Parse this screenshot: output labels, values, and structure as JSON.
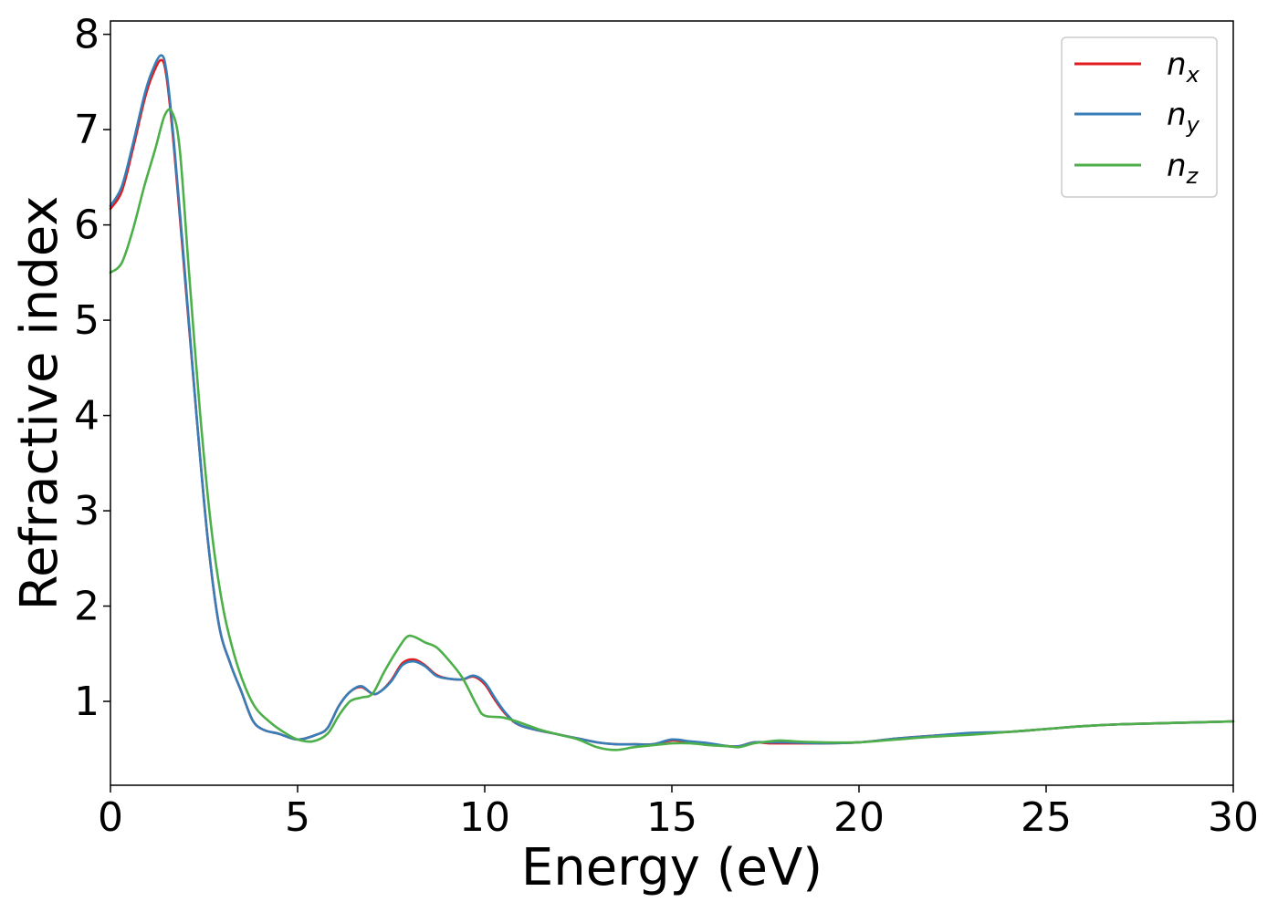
{
  "chart_data": {
    "type": "line",
    "title": "",
    "xlabel": "Energy (eV)",
    "ylabel": "Refractive index",
    "xlim": [
      0,
      30
    ],
    "ylim": [
      0.12,
      8.14
    ],
    "xticks": [
      0,
      5,
      10,
      15,
      20,
      25,
      30
    ],
    "xtick_labels": [
      "0",
      "5",
      "10",
      "15",
      "20",
      "25",
      "30"
    ],
    "yticks": [
      1,
      2,
      3,
      4,
      5,
      6,
      7,
      8
    ],
    "ytick_labels": [
      "1",
      "2",
      "3",
      "4",
      "5",
      "6",
      "7",
      "8"
    ],
    "grid": false,
    "legend_position": "top-right",
    "series": [
      {
        "name": "n_x",
        "label_main": "n",
        "label_sub": "x",
        "color": "#e41a1c",
        "x": [
          0,
          0.3,
          0.6,
          0.9,
          1.1,
          1.35,
          1.5,
          1.7,
          2.0,
          2.3,
          2.6,
          2.9,
          3.2,
          3.5,
          3.8,
          4.1,
          4.5,
          5.0,
          5.5,
          5.8,
          6.1,
          6.4,
          6.7,
          7.0,
          7.2,
          7.5,
          7.8,
          8.1,
          8.4,
          8.7,
          9.0,
          9.4,
          9.7,
          10.0,
          10.3,
          10.6,
          11.0,
          12.0,
          12.5,
          13.0,
          13.5,
          14.0,
          14.5,
          15.0,
          15.5,
          16.0,
          16.5,
          16.8,
          17.2,
          17.6,
          18.0,
          19.0,
          20.0,
          21.0,
          22.0,
          23.0,
          24.0,
          25.0,
          26.0,
          27.0,
          28.0,
          29.0,
          30.0
        ],
        "y": [
          6.17,
          6.35,
          6.8,
          7.3,
          7.55,
          7.73,
          7.55,
          6.8,
          5.4,
          4.0,
          2.7,
          1.8,
          1.4,
          1.1,
          0.8,
          0.7,
          0.66,
          0.6,
          0.65,
          0.72,
          0.95,
          1.1,
          1.15,
          1.08,
          1.1,
          1.22,
          1.4,
          1.44,
          1.38,
          1.28,
          1.24,
          1.23,
          1.26,
          1.18,
          1.0,
          0.85,
          0.74,
          0.65,
          0.61,
          0.57,
          0.55,
          0.55,
          0.55,
          0.59,
          0.57,
          0.55,
          0.53,
          0.53,
          0.57,
          0.56,
          0.56,
          0.56,
          0.57,
          0.61,
          0.64,
          0.66,
          0.68,
          0.71,
          0.74,
          0.76,
          0.77,
          0.78,
          0.79
        ]
      },
      {
        "name": "n_y",
        "label_main": "n",
        "label_sub": "y",
        "color": "#377eb8",
        "x": [
          0,
          0.3,
          0.6,
          0.9,
          1.1,
          1.35,
          1.5,
          1.7,
          2.0,
          2.3,
          2.6,
          2.9,
          3.2,
          3.5,
          3.8,
          4.1,
          4.5,
          5.0,
          5.5,
          5.8,
          6.1,
          6.4,
          6.7,
          7.0,
          7.2,
          7.5,
          7.8,
          8.1,
          8.4,
          8.7,
          9.0,
          9.4,
          9.7,
          10.0,
          10.3,
          10.6,
          11.0,
          12.0,
          12.5,
          13.0,
          13.5,
          14.0,
          14.5,
          15.0,
          15.5,
          16.0,
          16.5,
          16.8,
          17.2,
          17.6,
          18.0,
          19.0,
          20.0,
          21.0,
          22.0,
          23.0,
          24.0,
          25.0,
          26.0,
          27.0,
          28.0,
          29.0,
          30.0
        ],
        "y": [
          6.2,
          6.4,
          6.85,
          7.35,
          7.6,
          7.78,
          7.6,
          6.85,
          5.45,
          4.0,
          2.7,
          1.8,
          1.4,
          1.1,
          0.8,
          0.7,
          0.66,
          0.6,
          0.65,
          0.72,
          0.95,
          1.1,
          1.16,
          1.08,
          1.1,
          1.21,
          1.38,
          1.42,
          1.37,
          1.27,
          1.24,
          1.23,
          1.27,
          1.2,
          1.02,
          0.86,
          0.74,
          0.65,
          0.61,
          0.57,
          0.55,
          0.55,
          0.55,
          0.6,
          0.58,
          0.56,
          0.53,
          0.53,
          0.57,
          0.57,
          0.57,
          0.56,
          0.57,
          0.61,
          0.64,
          0.67,
          0.68,
          0.71,
          0.74,
          0.76,
          0.77,
          0.78,
          0.79
        ]
      },
      {
        "name": "n_z",
        "label_main": "n",
        "label_sub": "z",
        "color": "#4daf4a",
        "x": [
          0,
          0.3,
          0.6,
          0.9,
          1.2,
          1.45,
          1.65,
          1.85,
          2.1,
          2.4,
          2.7,
          3.0,
          3.3,
          3.6,
          3.9,
          4.3,
          4.7,
          5.0,
          5.4,
          5.8,
          6.1,
          6.4,
          6.7,
          7.0,
          7.3,
          7.6,
          7.9,
          8.1,
          8.4,
          8.7,
          9.0,
          9.4,
          9.8,
          10.0,
          10.5,
          11.0,
          11.5,
          12.0,
          12.5,
          13.0,
          13.5,
          14.0,
          14.5,
          15.0,
          15.5,
          16.0,
          16.5,
          16.8,
          17.2,
          17.6,
          17.9,
          18.3,
          19.0,
          20.0,
          21.0,
          22.0,
          23.0,
          24.0,
          25.0,
          26.0,
          27.0,
          28.0,
          29.0,
          30.0
        ],
        "y": [
          5.5,
          5.6,
          5.95,
          6.4,
          6.8,
          7.15,
          7.18,
          6.8,
          5.5,
          4.0,
          2.8,
          2.0,
          1.5,
          1.15,
          0.92,
          0.77,
          0.66,
          0.6,
          0.58,
          0.66,
          0.85,
          1.0,
          1.04,
          1.08,
          1.3,
          1.5,
          1.67,
          1.68,
          1.62,
          1.57,
          1.45,
          1.25,
          0.95,
          0.85,
          0.83,
          0.77,
          0.7,
          0.65,
          0.6,
          0.52,
          0.49,
          0.52,
          0.54,
          0.56,
          0.56,
          0.54,
          0.53,
          0.52,
          0.56,
          0.58,
          0.59,
          0.58,
          0.57,
          0.57,
          0.6,
          0.63,
          0.65,
          0.68,
          0.71,
          0.74,
          0.76,
          0.77,
          0.78,
          0.79
        ]
      }
    ]
  }
}
